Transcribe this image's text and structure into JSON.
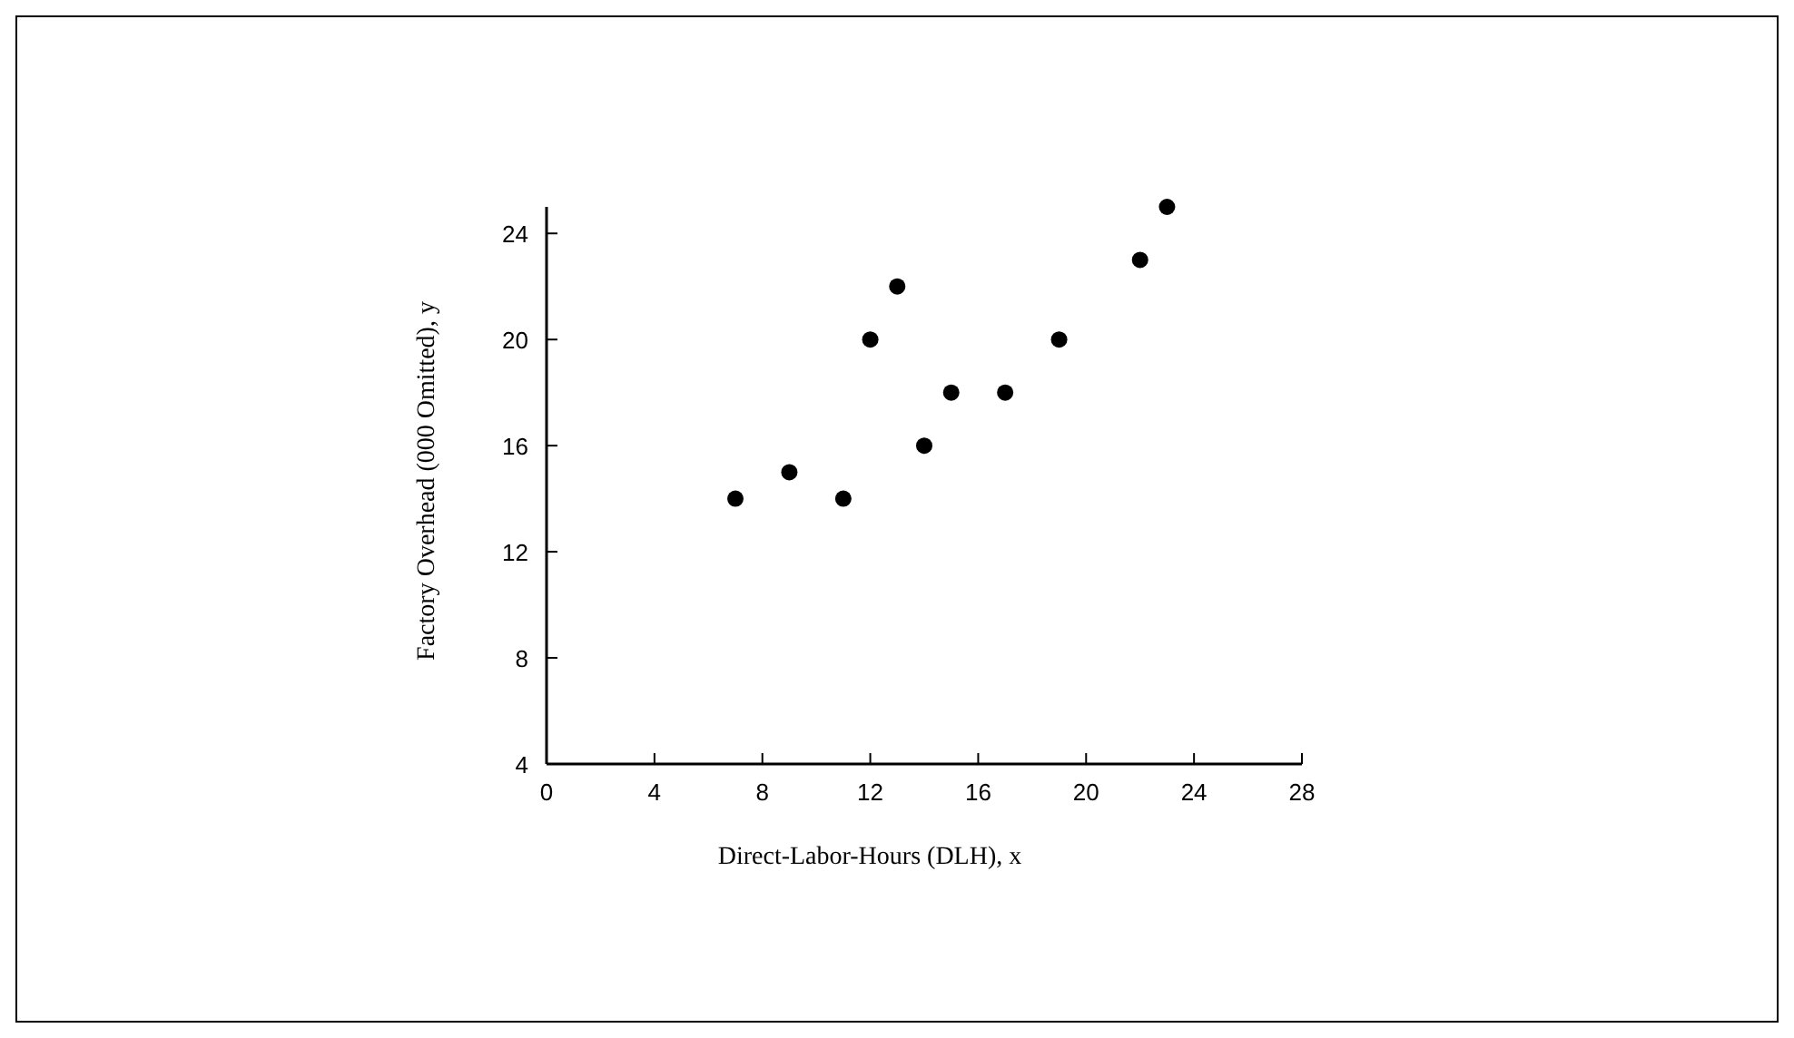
{
  "chart_data": {
    "type": "scatter",
    "xlabel": "Direct-Labor-Hours (DLH), x",
    "ylabel": "Factory Overhead (000 Omitted), y",
    "x": [
      7,
      9,
      11,
      12,
      13,
      14,
      15,
      17,
      19,
      22,
      23
    ],
    "series": [
      {
        "color": "#000000",
        "values": [
          14,
          15,
          14,
          20,
          22,
          16,
          18,
          18,
          20,
          23,
          25
        ]
      }
    ],
    "xlim": [
      0,
      28
    ],
    "xticks": [
      0,
      4,
      8,
      12,
      16,
      20,
      24,
      28
    ],
    "ylim": [
      4,
      25
    ],
    "yticks": [
      4,
      8,
      12,
      16,
      20,
      24
    ],
    "marker": "circle",
    "grid": false
  }
}
